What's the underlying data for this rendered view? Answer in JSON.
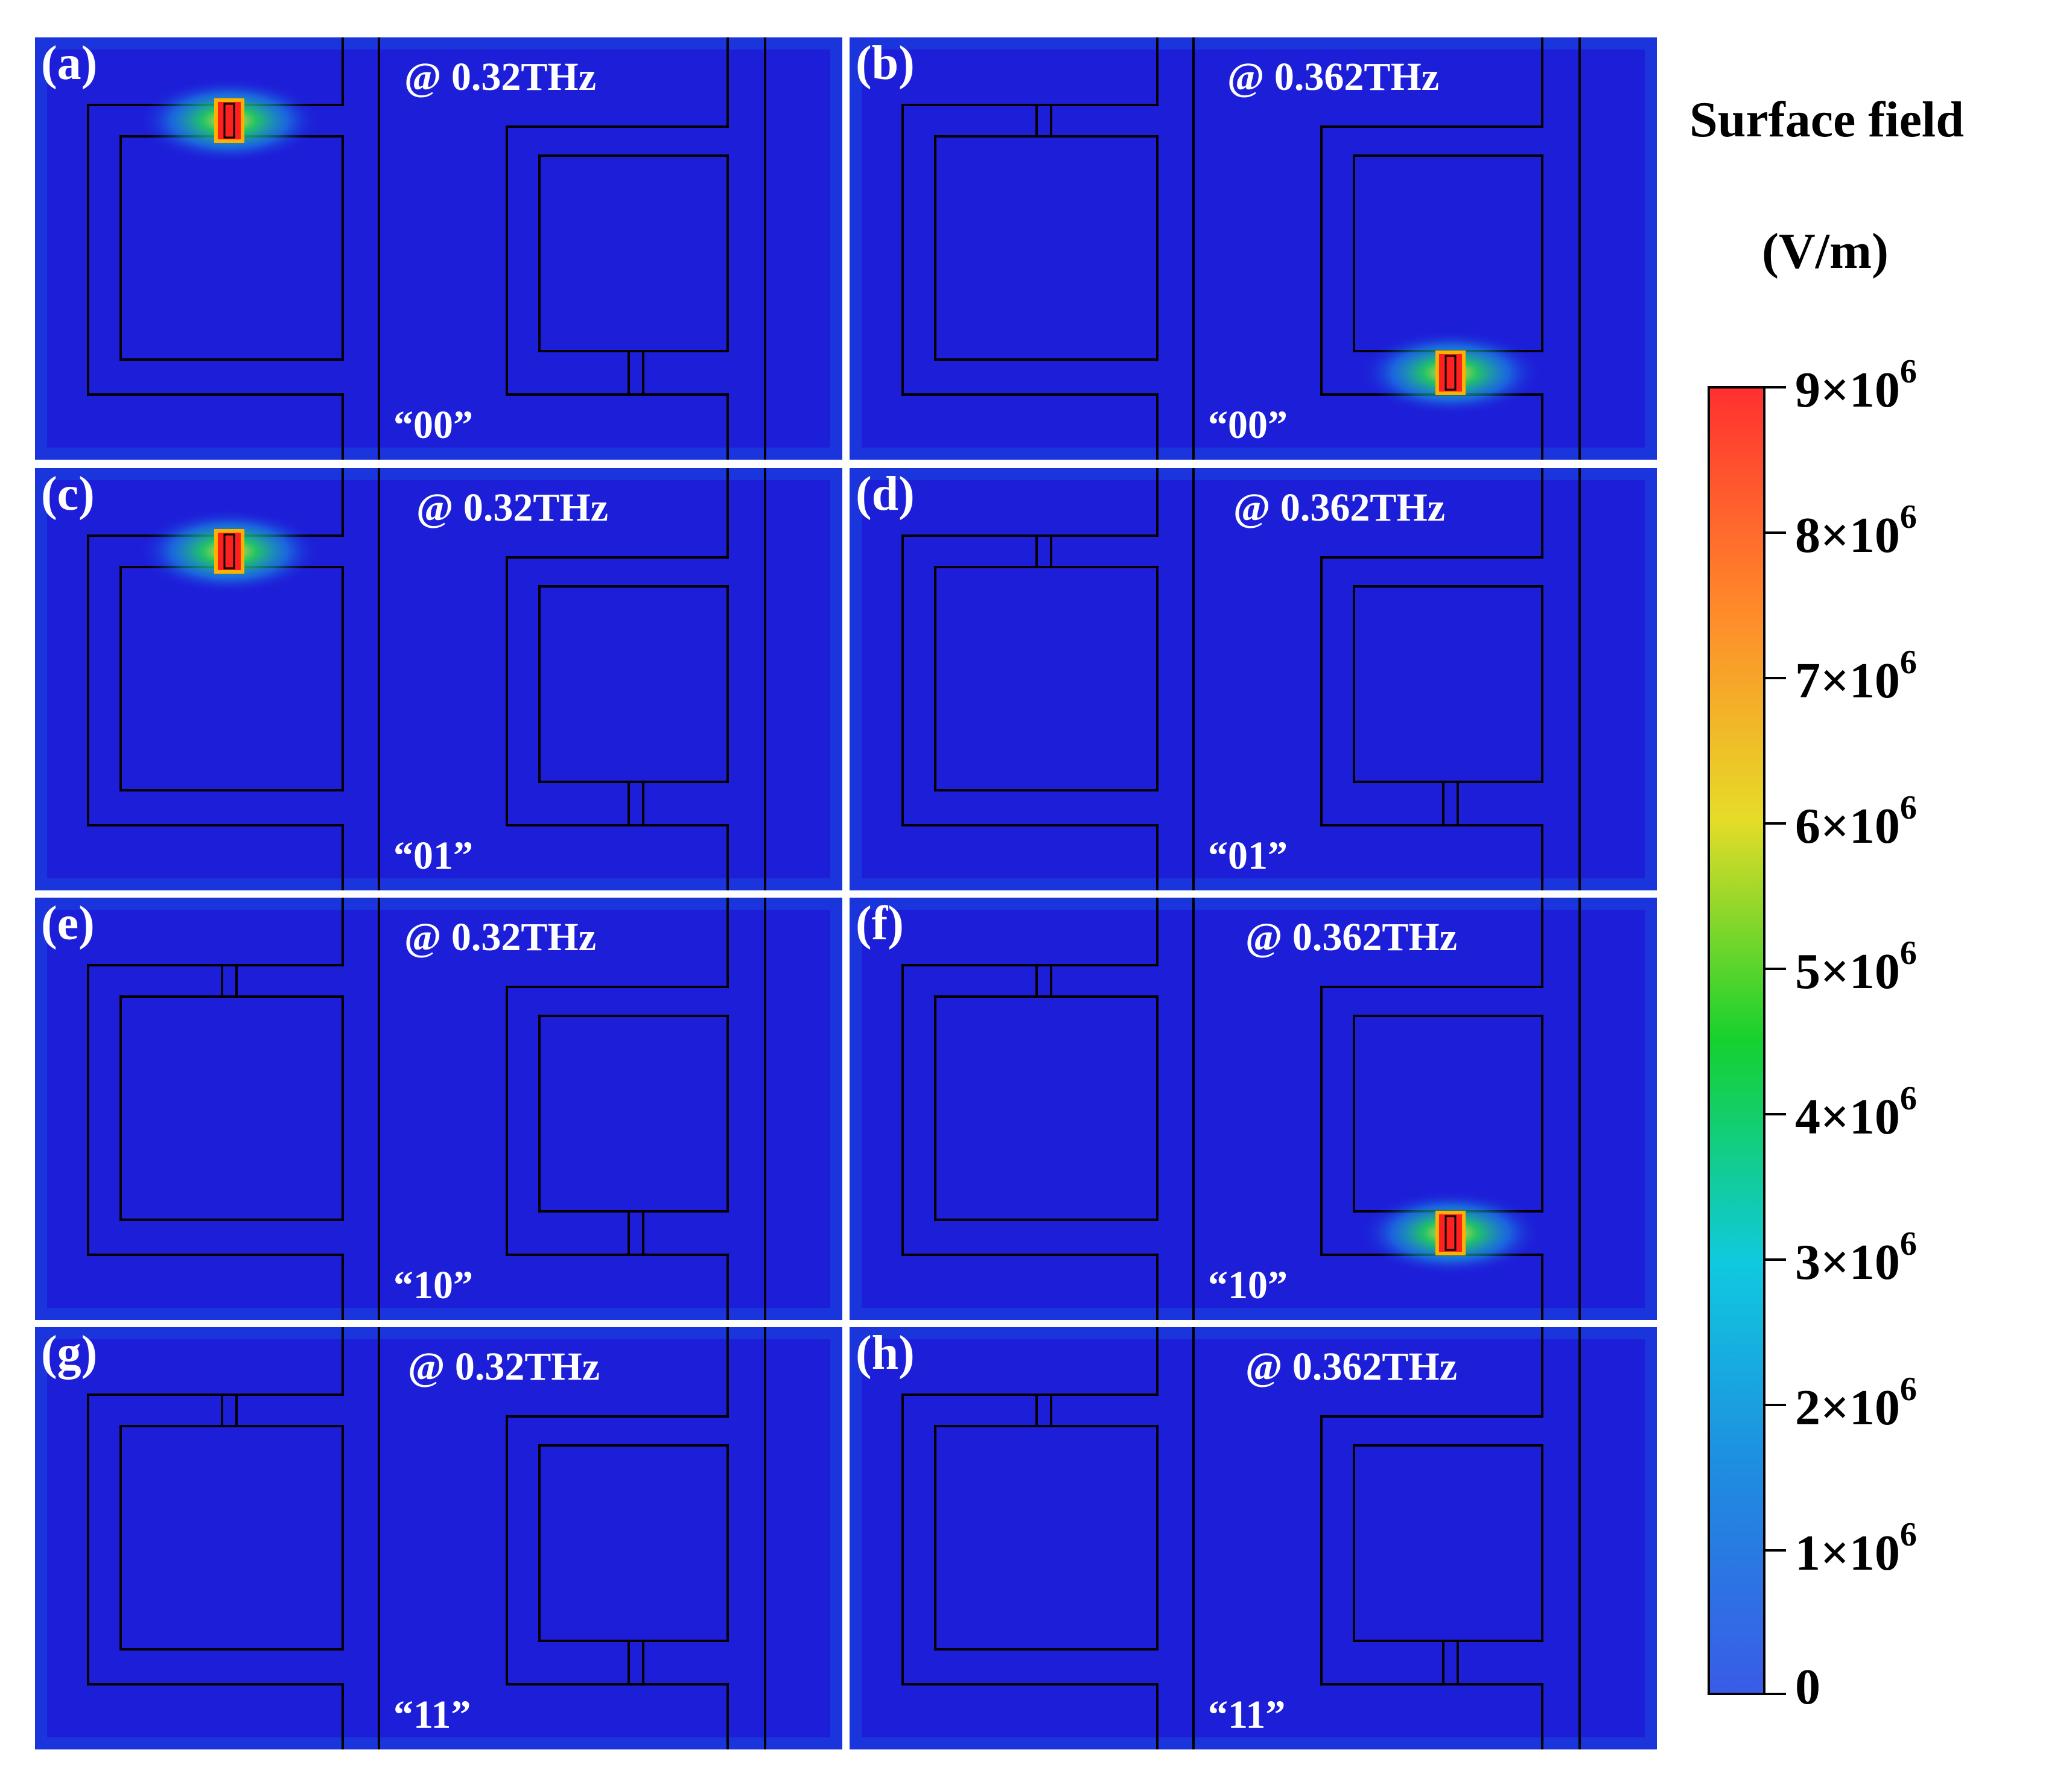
{
  "colors": {
    "background_field": "#1d1fd8",
    "line": "#000000",
    "colormap": [
      "#3a5be8",
      "#1f8ce0",
      "#10c9df",
      "#15d12e",
      "#e6dc28",
      "#ff8a2a",
      "#ff3030"
    ]
  },
  "panels": [
    {
      "label": "(a)",
      "freq": "@ 0.32THz",
      "code": "“00”",
      "hot": "top"
    },
    {
      "label": "(b)",
      "freq": "@ 0.362THz",
      "code": "“00”",
      "hot": "bottom"
    },
    {
      "label": "(c)",
      "freq": "@ 0.32THz",
      "code": "“01”",
      "hot": "top"
    },
    {
      "label": "(d)",
      "freq": "@ 0.362THz",
      "code": "“01”",
      "hot": "none"
    },
    {
      "label": "(e)",
      "freq": "@ 0.32THz",
      "code": "“10”",
      "hot": "none"
    },
    {
      "label": "(f)",
      "freq": "@ 0.362THz",
      "code": "“10”",
      "hot": "bottom"
    },
    {
      "label": "(g)",
      "freq": "@ 0.32THz",
      "code": "“11”",
      "hot": "none"
    },
    {
      "label": "(h)",
      "freq": "@ 0.362THz",
      "code": "“11”",
      "hot": "none"
    }
  ],
  "colorbar": {
    "title_line1": "Surface field",
    "title_line2": "(V/m)",
    "ticks": [
      {
        "base": "9×10",
        "exp": "6"
      },
      {
        "base": "8×10",
        "exp": "6"
      },
      {
        "base": "7×10",
        "exp": "6"
      },
      {
        "base": "6×10",
        "exp": "6"
      },
      {
        "base": "5×10",
        "exp": "6"
      },
      {
        "base": "4×10",
        "exp": "6"
      },
      {
        "base": "3×10",
        "exp": "6"
      },
      {
        "base": "2×10",
        "exp": "6"
      },
      {
        "base": "1×10",
        "exp": "6"
      },
      {
        "base": "0",
        "exp": ""
      }
    ]
  }
}
